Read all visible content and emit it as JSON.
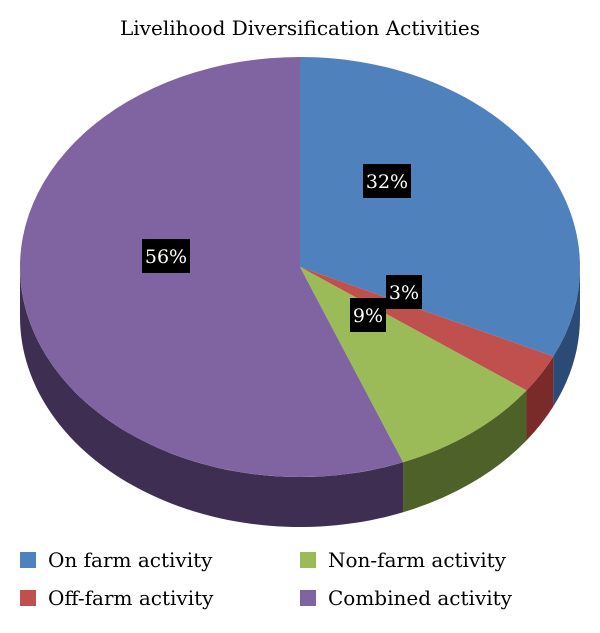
{
  "chart_data": {
    "type": "pie",
    "title": "Livelihood Diversification Activities",
    "categories": [
      "On farm activity",
      "Off-farm activity",
      "Non-farm activity",
      "Combined activity"
    ],
    "values": [
      32,
      3,
      9,
      56
    ],
    "value_labels": [
      "32%",
      "3%",
      "9%",
      "56%"
    ],
    "colors": [
      "#4F81BD",
      "#C0504D",
      "#9BBB59",
      "#8064A2"
    ],
    "side_colors": [
      "#2B4A75",
      "#7A2A28",
      "#4E6128",
      "#3E2F52"
    ],
    "label_bg": "#000000",
    "legend_position": "bottom",
    "style": "3d"
  }
}
